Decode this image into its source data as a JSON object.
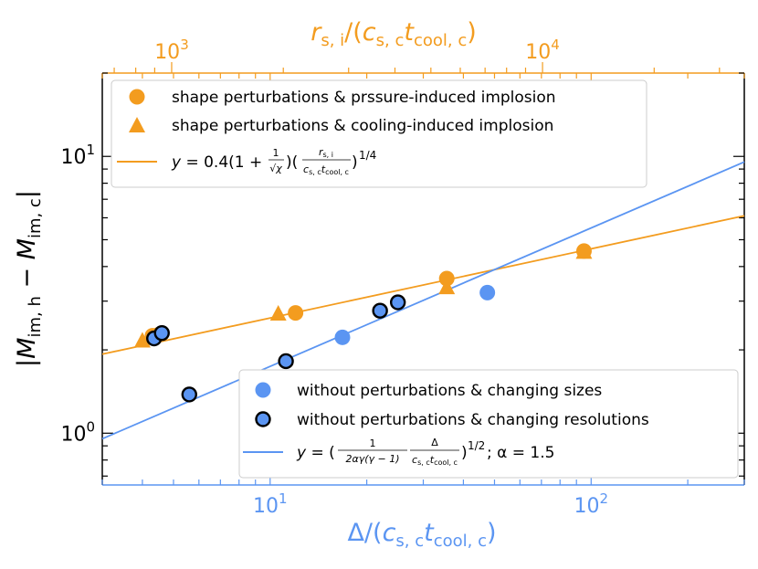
{
  "colors": {
    "orange": "#f39c1f",
    "blue": "#5b95f2",
    "black": "#000000"
  },
  "chart_data": {
    "type": "scatter",
    "xscale": "log",
    "yscale": "log",
    "xlim": [
      3.0,
      300.0
    ],
    "ylim": [
      0.65,
      20.0
    ],
    "xlabel": "Δ/(c_{s,c} t_{cool,c})",
    "xlabel_parts": {
      "pre": "Δ/(",
      "c": "c",
      "c_sub": "s, c",
      "t": "t",
      "t_sub": "cool, c",
      "post": ")"
    },
    "top_xlabel_parts": {
      "r": "r",
      "r_sub": "s, i",
      "mid": "/(",
      "c": "c",
      "c_sub": "s, c",
      "t": "t",
      "t_sub": "cool, c",
      "post": ")"
    },
    "ylabel_parts": {
      "pre": "|",
      "m1": "M",
      "m1_sub": "im, h",
      "minus": " − ",
      "m2": "M",
      "m2_sub": "im, c",
      "post": "|"
    },
    "bottom_ticks": [
      {
        "value": 10,
        "base": "10",
        "exp": "1"
      },
      {
        "value": 100,
        "base": "10",
        "exp": "2"
      }
    ],
    "left_ticks": [
      {
        "value": 1,
        "base": "10",
        "exp": "0"
      },
      {
        "value": 10,
        "base": "10",
        "exp": "1"
      }
    ],
    "top_axis": {
      "label": "r_{s,i}/(c_{s,c} t_{cool,c})",
      "bottom_units_per_top_unit_note": "top axis is a scaled log axis",
      "top_at_bottom_3": 650,
      "top_at_bottom_300": 35000,
      "ticks": [
        {
          "value": 1000,
          "base": "10",
          "exp": "3"
        },
        {
          "value": 10000,
          "base": "10",
          "exp": "4"
        }
      ]
    },
    "series": [
      {
        "name": "shape perturbations & prssure-induced implosion",
        "marker": "circle-orange",
        "points": [
          [
            4.3,
            2.25
          ],
          [
            4.5,
            2.27
          ],
          [
            12.0,
            2.72
          ],
          [
            35.5,
            3.62
          ],
          [
            95.0,
            4.55
          ]
        ]
      },
      {
        "name": "shape perturbations & cooling-induced implosion",
        "marker": "triangle-orange",
        "points": [
          [
            4.0,
            2.15
          ],
          [
            10.6,
            2.69
          ],
          [
            35.5,
            3.35
          ],
          [
            95.0,
            4.5
          ]
        ]
      },
      {
        "name": "without perturbations & changing sizes",
        "marker": "circle-blue",
        "points": [
          [
            16.8,
            2.22
          ],
          [
            47.5,
            3.22
          ]
        ]
      },
      {
        "name": "without perturbations & changing resolutions",
        "marker": "circle-blue-black-edge",
        "points": [
          [
            4.35,
            2.2
          ],
          [
            4.6,
            2.3
          ],
          [
            5.6,
            1.38
          ],
          [
            11.2,
            1.82
          ],
          [
            22.0,
            2.77
          ],
          [
            25.0,
            2.97
          ]
        ]
      }
    ],
    "fit_lines": [
      {
        "name": "y = 0.4(1 + 1/√χ)(r_{s,i}/(c_{s,c} t_{cool,c}))^{1/4}",
        "color": "orange",
        "points": [
          [
            3.0,
            1.93
          ],
          [
            300.0,
            6.1
          ]
        ]
      },
      {
        "name": "y = (1/(2αγ(γ−1)) Δ/(c_{s,c} t_{cool,c}))^{1/2}; α = 1.5",
        "color": "blue",
        "points": [
          [
            3.0,
            0.955
          ],
          [
            300.0,
            9.55
          ]
        ]
      }
    ],
    "legend_top_left": {
      "item1": "shape perturbations & prssure-induced implosion",
      "item2": "shape perturbations & cooling-induced implosion",
      "item3": {
        "y": "y",
        "eq": " = 0.4(1 + ",
        "frac_num": "1",
        "sqrt": "√",
        "chi": "χ",
        "mid": ")(",
        "r": "r",
        "r_sub": "s, i",
        "den_c": "c",
        "den_c_sub": "s, c",
        "den_t": "t",
        "den_t_sub": "cool, c",
        "close": ")",
        "exp": "1/4"
      }
    },
    "legend_bottom_right": {
      "item1": "without perturbations & changing sizes",
      "item2": "without perturbations & changing resolutions",
      "item3": {
        "y": "y",
        "eq": " = (",
        "frac1_num": "1",
        "frac1_den": "2αγ(γ − 1)",
        "frac2_num": "Δ",
        "den_c": "c",
        "den_c_sub": "s, c",
        "den_t": "t",
        "den_t_sub": "cool, c",
        "close": ")",
        "exp": "1/2",
        "alpha": "; α = 1.5"
      }
    }
  }
}
